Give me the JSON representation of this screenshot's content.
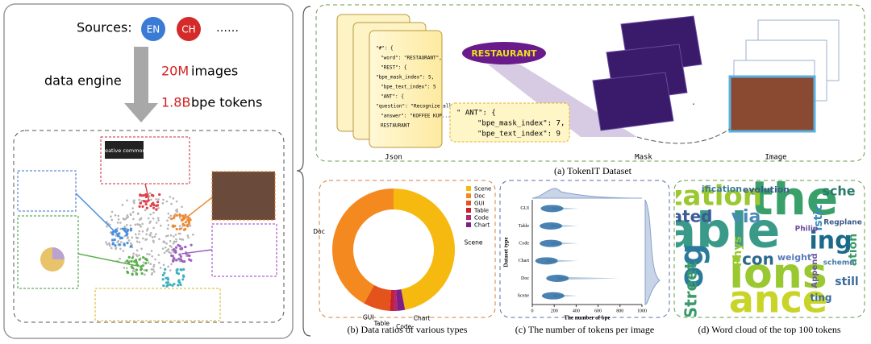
{
  "left_panel": {
    "sources_label": "Sources:",
    "sources": [
      "EN",
      "CH"
    ],
    "more": "……",
    "engine": "data engine",
    "images_count": "20M",
    "images_unit": "images",
    "tokens_count": "1.8B",
    "tokens_unit": "bpe tokens",
    "inset_logo": "creative commons"
  },
  "tokenit": {
    "labels": [
      "Json",
      "Mask",
      "Image"
    ],
    "word": "RESTAURANT",
    "json_lines": [
      "\"#\": {",
      "\"word\": \"RESTAURANT\",",
      "\"REST\": {",
      "\"bpe_mask_index\": 5,",
      "\"bpe_text_index\": 5",
      "\"ANT\": {",
      "\"question\": \"Recognize all text\",",
      "\"answer\": \"KOFFEE KUP...",
      "RESTAURANT"
    ],
    "json_box": [
      "\" ANT\": {",
      "\"bpe_mask_index\": 7,",
      "\"bpe_text_index\": 9"
    ]
  },
  "wordcloud": {
    "words": [
      "the",
      "able",
      "ing",
      "ization",
      "ions",
      "ance",
      "og",
      "ated",
      "via",
      "con",
      "Street",
      "still",
      "Phys",
      "evolution",
      "weight",
      "Regplane",
      "istic",
      "sche",
      "ting",
      "ation",
      "scheme",
      "Append",
      "ification",
      "Philip"
    ]
  },
  "captions": [
    "(a) TokenIT Dataset",
    "(b) Data ratios of various types",
    "(c) The number of tokens per image",
    "(d) Word cloud of the top 100 tokens"
  ],
  "chart_data": [
    {
      "type": "pie",
      "categories": [
        "Scene",
        "Doc",
        "GUI",
        "Table",
        "Code",
        "Chart"
      ],
      "values": [
        47,
        42,
        7,
        1,
        1,
        2
      ],
      "colors": [
        "#f5b90f",
        "#f4891f",
        "#e5531d",
        "#c81f2e",
        "#b3296a",
        "#7e1f86"
      ],
      "donut": true,
      "legend": "top-right"
    },
    {
      "type": "violin",
      "x_label": "The number of bpe",
      "y_label": "Dataset type",
      "categories": [
        "GUI",
        "Table",
        "Code",
        "Chart",
        "Doc",
        "Scene"
      ],
      "values": [
        180,
        170,
        170,
        130,
        230,
        190
      ],
      "xlim": [
        0,
        1000
      ],
      "xticks": [
        0,
        200,
        400,
        600,
        800,
        1000
      ],
      "color": "#2b6ca3"
    }
  ]
}
